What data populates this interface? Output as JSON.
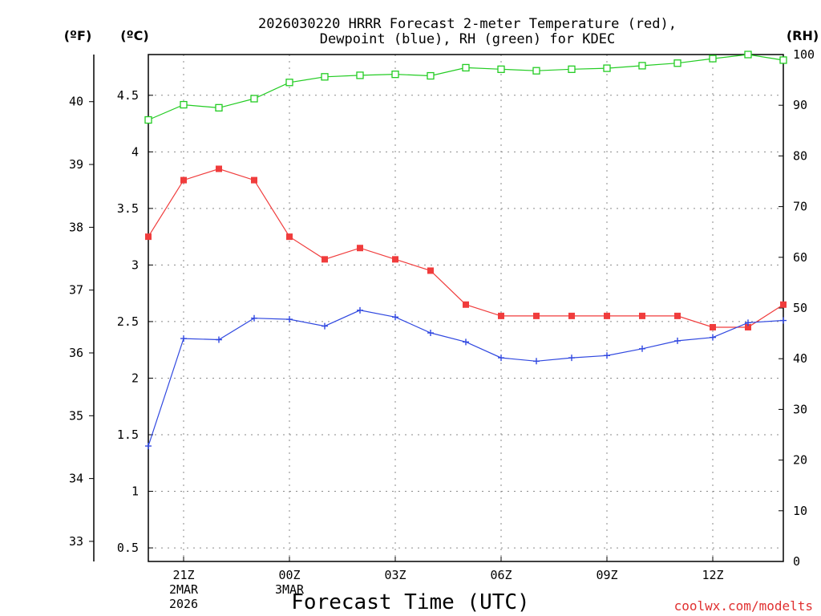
{
  "chart_data": {
    "type": "line",
    "title_line1": "2026030220 HRRR Forecast 2-meter Temperature (red),",
    "title_line2": "Dewpoint (blue), RH (green) for KDEC",
    "xlabel": "Forecast Time (UTC)",
    "credit": "coolwx.com/modelts",
    "units": {
      "fahrenheit": "(ºF)",
      "celsius": "(ºC)",
      "rh": "(RH)"
    },
    "x_range": [
      20,
      38
    ],
    "x_ticks": [
      {
        "x": 21,
        "lines": [
          "21Z",
          "2MAR",
          "2026"
        ]
      },
      {
        "x": 24,
        "lines": [
          "00Z",
          "3MAR"
        ]
      },
      {
        "x": 27,
        "lines": [
          "03Z"
        ]
      },
      {
        "x": 30,
        "lines": [
          "06Z"
        ]
      },
      {
        "x": 33,
        "lines": [
          "09Z"
        ]
      },
      {
        "x": 36,
        "lines": [
          "12Z"
        ]
      }
    ],
    "celsius_axis": {
      "range": [
        0.38,
        4.86
      ],
      "ticks": [
        "0.5",
        "1",
        "1.5",
        "2",
        "2.5",
        "3",
        "3.5",
        "4",
        "4.5"
      ]
    },
    "fahrenheit_axis": {
      "range": [
        32.68,
        40.75
      ],
      "ticks": [
        "33",
        "34",
        "35",
        "36",
        "37",
        "38",
        "39",
        "40"
      ]
    },
    "rh_axis": {
      "range": [
        0,
        100
      ],
      "ticks": [
        "0",
        "10",
        "20",
        "30",
        "40",
        "50",
        "60",
        "70",
        "80",
        "90",
        "100"
      ]
    },
    "series": [
      {
        "name": "Temperature",
        "axis": "celsius",
        "color": "#f03c3c",
        "marker": "filled-square",
        "x": [
          20,
          21,
          22,
          23,
          24,
          25,
          26,
          27,
          28,
          29,
          30,
          31,
          32,
          33,
          34,
          35,
          36,
          37,
          38
        ],
        "values": [
          3.25,
          3.75,
          3.85,
          3.75,
          3.25,
          3.05,
          3.15,
          3.05,
          2.95,
          2.65,
          2.55,
          2.55,
          2.55,
          2.55,
          2.55,
          2.55,
          2.45,
          2.45,
          2.65
        ]
      },
      {
        "name": "Dewpoint",
        "axis": "celsius",
        "color": "#3048e0",
        "marker": "plus",
        "x": [
          20,
          21,
          22,
          23,
          24,
          25,
          26,
          27,
          28,
          29,
          30,
          31,
          32,
          33,
          34,
          35,
          36,
          37,
          38
        ],
        "values": [
          1.4,
          2.35,
          2.34,
          2.53,
          2.52,
          2.46,
          2.6,
          2.54,
          2.4,
          2.32,
          2.18,
          2.15,
          2.18,
          2.2,
          2.26,
          2.33,
          2.36,
          2.49,
          2.51
        ]
      },
      {
        "name": "RH",
        "axis": "rh",
        "color": "#22cc22",
        "marker": "open-square",
        "x": [
          20,
          21,
          22,
          23,
          24,
          25,
          26,
          27,
          28,
          29,
          30,
          31,
          32,
          33,
          34,
          35,
          36,
          37,
          38
        ],
        "values": [
          87.1,
          90.1,
          89.5,
          91.3,
          94.5,
          95.6,
          95.9,
          96.1,
          95.8,
          97.4,
          97.1,
          96.8,
          97.1,
          97.3,
          97.8,
          98.3,
          99.2,
          100,
          98.9
        ]
      }
    ]
  }
}
